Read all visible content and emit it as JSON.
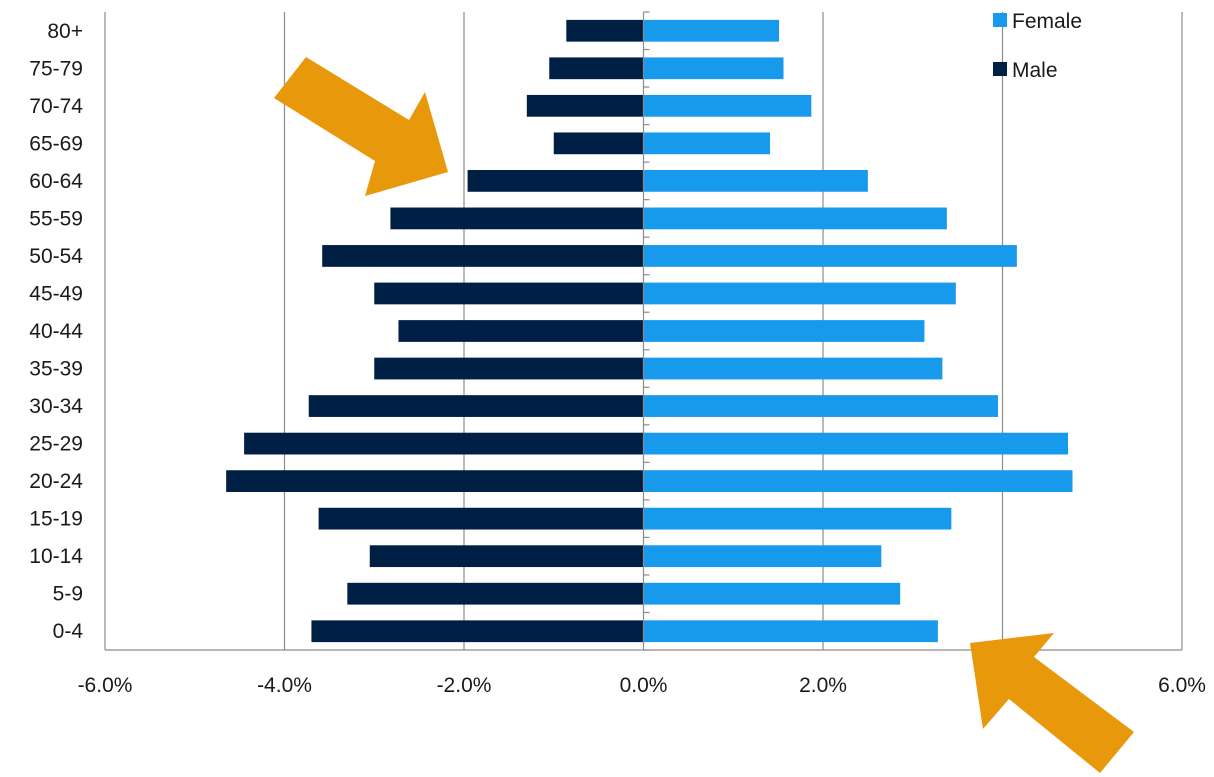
{
  "chart_data": {
    "type": "bar",
    "orientation": "horizontal",
    "title": "",
    "xlabel": "",
    "ylabel": "",
    "categories": [
      "0-4",
      "5-9",
      "10-14",
      "15-19",
      "20-24",
      "25-29",
      "30-34",
      "35-39",
      "40-44",
      "45-49",
      "50-54",
      "55-59",
      "60-64",
      "65-69",
      "70-74",
      "75-79",
      "80+"
    ],
    "series": [
      {
        "name": "Male",
        "color": "#001f45",
        "values": [
          -3.7,
          -3.3,
          -3.05,
          -3.62,
          -4.65,
          -4.45,
          -3.73,
          -3.0,
          -2.73,
          -3.0,
          -3.58,
          -2.82,
          -1.96,
          -1.0,
          -1.3,
          -1.05,
          -0.86
        ]
      },
      {
        "name": "Female",
        "color": "#1799ec",
        "values": [
          3.28,
          2.86,
          2.65,
          3.43,
          4.78,
          4.73,
          3.95,
          3.33,
          3.13,
          3.48,
          4.16,
          3.38,
          2.5,
          1.41,
          1.87,
          1.56,
          1.51
        ]
      }
    ],
    "xlim": [
      -6,
      6
    ],
    "xticks": [
      -6,
      -4,
      -2,
      0,
      2,
      4,
      6
    ],
    "xtick_labels": [
      "-6.0%",
      "-4.0%",
      "-2.0%",
      "0.0%",
      "2.0%",
      "4.0%",
      "6.0%"
    ],
    "grid": true,
    "legend_position": "top-right",
    "annotations": [
      {
        "type": "arrow",
        "color": "#e8980b",
        "points_to": "60-64 Male bar"
      },
      {
        "type": "arrow",
        "color": "#e8980b",
        "points_to": "4.0% axis tick"
      }
    ]
  }
}
